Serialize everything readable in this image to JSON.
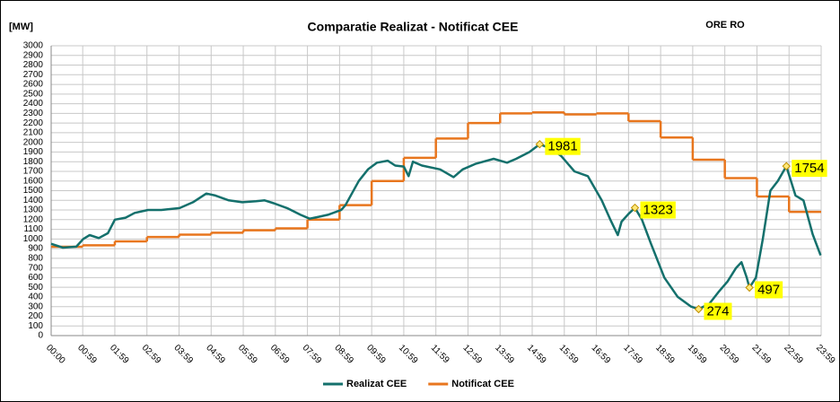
{
  "chart_data": {
    "type": "line",
    "title": "Comparatie Realizat - Notificat  CEE",
    "subtitle": "ORE RO",
    "y_label": "[MW]",
    "ylim": [
      0,
      3000
    ],
    "yticks": [
      0,
      100,
      200,
      300,
      400,
      500,
      600,
      700,
      800,
      900,
      1000,
      1100,
      1200,
      1300,
      1400,
      1500,
      1600,
      1700,
      1800,
      1900,
      2000,
      2100,
      2200,
      2300,
      2400,
      2500,
      2600,
      2700,
      2800,
      2900,
      3000
    ],
    "xlim": [
      0,
      1439
    ],
    "xticks": [
      {
        "value": 0,
        "label": "00:00"
      },
      {
        "value": 59,
        "label": "00:59"
      },
      {
        "value": 119,
        "label": "01:59"
      },
      {
        "value": 179,
        "label": "02:59"
      },
      {
        "value": 239,
        "label": "03:59"
      },
      {
        "value": 299,
        "label": "04:59"
      },
      {
        "value": 359,
        "label": "05:59"
      },
      {
        "value": 419,
        "label": "06:59"
      },
      {
        "value": 479,
        "label": "07:59"
      },
      {
        "value": 539,
        "label": "08:59"
      },
      {
        "value": 599,
        "label": "09:59"
      },
      {
        "value": 659,
        "label": "10:59"
      },
      {
        "value": 719,
        "label": "11:59"
      },
      {
        "value": 779,
        "label": "12:59"
      },
      {
        "value": 839,
        "label": "13:59"
      },
      {
        "value": 899,
        "label": "14:59"
      },
      {
        "value": 959,
        "label": "15:59"
      },
      {
        "value": 1019,
        "label": "16:59"
      },
      {
        "value": 1079,
        "label": "17:59"
      },
      {
        "value": 1139,
        "label": "18:59"
      },
      {
        "value": 1199,
        "label": "19:59"
      },
      {
        "value": 1259,
        "label": "20:59"
      },
      {
        "value": 1319,
        "label": "21:59"
      },
      {
        "value": 1379,
        "label": "22:59"
      },
      {
        "value": 1439,
        "label": "23:59"
      }
    ],
    "grid": true,
    "series": [
      {
        "name": "Realizat CEE",
        "color": "#14706c",
        "step": false,
        "x": [
          0,
          22,
          47,
          60,
          72,
          89,
          106,
          119,
          139,
          156,
          181,
          206,
          240,
          265,
          290,
          307,
          332,
          357,
          383,
          399,
          416,
          441,
          466,
          483,
          500,
          517,
          542,
          550,
          575,
          592,
          609,
          629,
          643,
          659,
          668,
          676,
          693,
          727,
          752,
          769,
          794,
          827,
          852,
          869,
          894,
          913,
          936,
          953,
          978,
          1003,
          1029,
          1045,
          1059,
          1066,
          1079,
          1091,
          1104,
          1121,
          1146,
          1171,
          1196,
          1210,
          1230,
          1247,
          1264,
          1280,
          1290,
          1300,
          1305,
          1317,
          1330,
          1344,
          1358,
          1374,
          1391,
          1406,
          1423,
          1438
        ],
        "values": [
          950,
          910,
          920,
          1000,
          1040,
          1010,
          1060,
          1200,
          1220,
          1270,
          1300,
          1300,
          1320,
          1380,
          1470,
          1450,
          1400,
          1380,
          1390,
          1400,
          1370,
          1320,
          1250,
          1210,
          1230,
          1250,
          1300,
          1350,
          1600,
          1720,
          1790,
          1810,
          1760,
          1750,
          1650,
          1800,
          1760,
          1720,
          1640,
          1720,
          1780,
          1830,
          1790,
          1830,
          1900,
          1981,
          1930,
          1860,
          1700,
          1650,
          1400,
          1200,
          1040,
          1180,
          1260,
          1323,
          1200,
          950,
          600,
          400,
          300,
          274,
          330,
          450,
          560,
          700,
          760,
          600,
          497,
          600,
          1000,
          1500,
          1600,
          1754,
          1450,
          1400,
          1050,
          830
        ]
      },
      {
        "name": "Notificat CEE",
        "color": "#e8761e",
        "step": true,
        "x": [
          0,
          59,
          119,
          179,
          239,
          299,
          359,
          419,
          479,
          539,
          599,
          659,
          719,
          779,
          839,
          899,
          959,
          1019,
          1079,
          1139,
          1199,
          1259,
          1319,
          1379
        ],
        "values": [
          920,
          935,
          975,
          1020,
          1045,
          1065,
          1090,
          1110,
          1200,
          1350,
          1600,
          1840,
          2040,
          2200,
          2300,
          2310,
          2290,
          2300,
          2220,
          2050,
          1820,
          1630,
          1440,
          1280
        ]
      }
    ],
    "annotations": [
      {
        "series": 0,
        "x": 913,
        "y": 1981
      },
      {
        "series": 0,
        "x": 1091,
        "y": 1323
      },
      {
        "series": 0,
        "x": 1210,
        "y": 274
      },
      {
        "series": 0,
        "x": 1305,
        "y": 497
      },
      {
        "series": 0,
        "x": 1374,
        "y": 1754
      }
    ]
  }
}
